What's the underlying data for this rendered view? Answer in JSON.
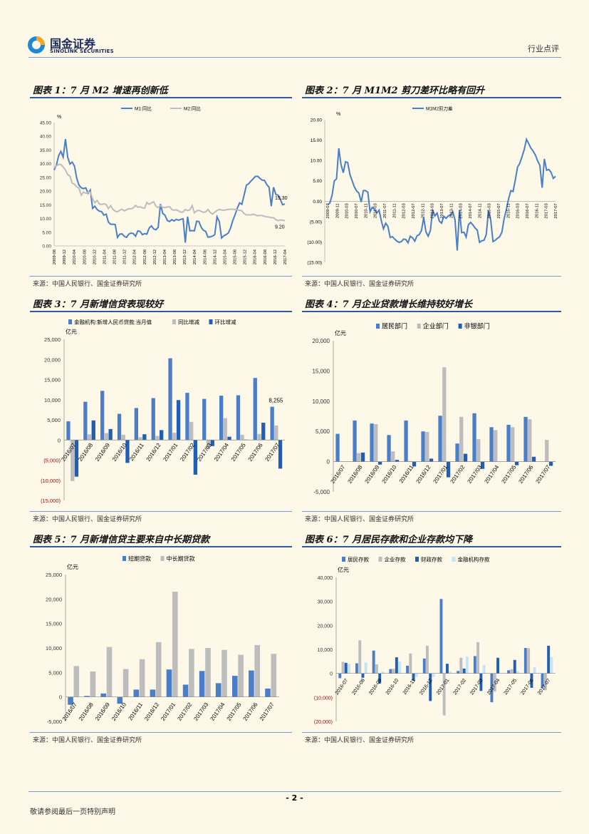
{
  "header": {
    "brand_cn": "国金证券",
    "brand_en": "SINOLINK SECURITIES",
    "category": "行业点评"
  },
  "figures": {
    "f1": {
      "title": "图表 1：7 月 M2 增速再创新低",
      "source": "来源：中国人民银行、国金证券研究所"
    },
    "f2": {
      "title": "图表 2：7 月 M1M2 剪刀差环比略有回升",
      "source": "来源：中国人民银行、国金证券研究所"
    },
    "f3": {
      "title": "图表 3：7 月新增信贷表现较好",
      "source": "来源：中国人民银行、国金证券研究所"
    },
    "f4": {
      "title": "图表 4：7 月企业贷款增长维持较好增长",
      "source": "来源：中国人民银行、国金证券研究所"
    },
    "f5": {
      "title": "图表 5：7 月新增信贷主要来自中长期贷款",
      "source": "来源：中国人民银行、国金证券研究所"
    },
    "f6": {
      "title": "图表 6：7 月居民存款和企业存款均下降",
      "source": "来源：中国人民银行、国金证券研究所"
    }
  },
  "footer": {
    "page": "- 2 -",
    "note": "敬请参阅最后一页特别声明"
  },
  "colors": {
    "blue": "#4a7ec8",
    "darkblue": "#1f5fb5",
    "gray": "#bdbdbd",
    "lightblue": "#c6e4f5",
    "red": "#c00000"
  },
  "chart_data": [
    {
      "id": "f1",
      "type": "line",
      "ylabel": "%",
      "ylim": [
        0,
        45
      ],
      "yticks": [
        "45.00",
        "40.00",
        "35.00",
        "30.00",
        "25.00",
        "20.00",
        "15.00",
        "10.00",
        "5.00",
        "0.00"
      ],
      "xticks": [
        "2009-08",
        "2009-12",
        "2010-04",
        "2010-08",
        "2010-12",
        "2011-04",
        "2011-08",
        "2011-12",
        "2012-04",
        "2012-08",
        "2012-12",
        "2013-04",
        "2013-08",
        "2013-12",
        "2014-04",
        "2014-08",
        "2014-12",
        "2015-04",
        "2015-08",
        "2015-12",
        "2016-04",
        "2016-08",
        "2016-12",
        "2017-04"
      ],
      "annotations": [
        "15.30",
        "9.20"
      ],
      "series": [
        {
          "name": "M1:同比",
          "values": [
            27.7,
            29.5,
            33,
            34.5,
            32.4,
            39,
            32.3,
            29.9,
            30.6,
            29.1,
            24.6,
            22.2,
            21.2,
            20.9,
            21.2,
            19.2,
            20.4,
            13.7,
            14.5,
            13.3,
            12.7,
            12.5,
            11.2,
            11.6,
            8.7,
            7.9,
            7.9,
            7.8,
            3.1,
            4.3,
            4.4,
            3.5,
            3.1,
            4.3,
            4.7,
            4.5,
            3.5,
            5.5,
            5.3,
            4.1,
            4.5,
            4.3,
            6.5,
            7.3,
            6.2,
            5.9,
            6.8,
            15.3,
            11.9,
            11.2,
            9.3,
            8.9,
            9.6,
            9.1,
            9.7,
            9.4,
            9.7,
            9.9,
            1.2,
            10.7,
            5.5,
            5.6,
            5.5,
            9.0,
            8.9,
            6.8,
            5.7,
            5.3,
            3.2,
            3.3,
            3.6,
            4.1,
            10.6,
            8.9,
            2.9,
            3.7,
            4.1,
            4.7,
            6.6,
            9.3,
            11.4,
            13.8,
            15.7,
            15.2,
            18.6,
            22.2,
            22.7,
            23.7,
            24.5,
            25.4,
            25.4,
            24.6,
            24.0,
            23.9,
            22.4,
            21.4,
            14.5,
            21.4,
            18.8,
            18.5,
            17.0,
            15.0,
            15.3
          ]
        },
        {
          "name": "M2:同比",
          "values": [
            28.5,
            29.3,
            29.7,
            29.7,
            28.8,
            27.7,
            26.0,
            25.5,
            22.9,
            22.5,
            21.5,
            21.1,
            18.5,
            19.7,
            19.2,
            19.5,
            19.7,
            17.2,
            15.7,
            16.6,
            15.3,
            15.1,
            15.4,
            15.1,
            13.6,
            14.7,
            13.3,
            12.7,
            12.4,
            13.0,
            13.4,
            12.8,
            13.2,
            13.6,
            13.5,
            13.9,
            14.8,
            14.1,
            14.3,
            13.9,
            13.8,
            15.9,
            15.2,
            15.7,
            16.1,
            14.5,
            14.0,
            14.7,
            14.1,
            14.0,
            14.2,
            14.3,
            13.3,
            13.0,
            13.2,
            12.8,
            12.3,
            12.4,
            13.3,
            12.9,
            13.2,
            14.7,
            12.1,
            12.8,
            13.0,
            12.6,
            12.3,
            12.4,
            13.3,
            12.2,
            11.6,
            12.3,
            12.9,
            13.3,
            13.1,
            13.0,
            13.2,
            13.3,
            13.4,
            13.4,
            13.3,
            13.1,
            13.0,
            12.8,
            11.8,
            11.3,
            11.4,
            11.3,
            11.6,
            11.3,
            11.0,
            11.1,
            11.1,
            10.8,
            10.6,
            10.5,
            10.3,
            10.3,
            9.6,
            9.2,
            9.5,
            9.4,
            9.2
          ]
        }
      ]
    },
    {
      "id": "f2",
      "type": "line",
      "ylabel": "%",
      "ylim": [
        -15,
        20
      ],
      "yticks": [
        "20.00",
        "15.00",
        "10.00",
        "5.00",
        "0.00",
        "(5.00)",
        "(10.00)",
        "(15.00)"
      ],
      "xticks": [
        "2009-07",
        "2009-11",
        "2010-03",
        "2010-07",
        "2010-11",
        "2011-03",
        "2011-07",
        "2011-11",
        "2012-03",
        "2012-07",
        "2012-11",
        "2013-03",
        "2013-07",
        "2013-11",
        "2014-03",
        "2014-07",
        "2014-11",
        "2015-03",
        "2015-07",
        "2015-11",
        "2016-03",
        "2016-07",
        "2016-11",
        "2017-03",
        "2017-07"
      ],
      "series": [
        {
          "name": "M1M2剪刀差",
          "values": [
            -0.8,
            -0.5,
            1.5,
            5,
            5.5,
            13,
            9,
            7,
            9.7,
            9.5,
            6.5,
            5,
            3.5,
            2.5,
            2,
            -0.2,
            2.6,
            2.6,
            2.2,
            -2.6,
            -1.5,
            -2,
            -2.9,
            -2.2,
            -4.7,
            -6.8,
            -5.4,
            -6.2,
            -8.9,
            -8.7,
            -9.3,
            -9.8,
            -10.1,
            -9.9,
            -9.3,
            -9.4,
            -10.2,
            -8.6,
            -9.0,
            -9.8,
            -8.5,
            -8.2,
            -7.2,
            -4.0,
            -7.5,
            -8.6,
            -7.2,
            -2.1,
            -3.6,
            -2.9,
            -4.9,
            -5.4,
            -3.7,
            -4.2,
            -3.6,
            -3.4,
            -2.6,
            -4.5,
            -12.1,
            -2.2,
            -7.7,
            -7.6,
            -8.8,
            -5.8,
            -5.2,
            -5.8,
            -6.6,
            -7.1,
            -10.1,
            -9.7,
            -9.6,
            -8.2,
            -2.3,
            -4.6,
            -9.9,
            -9.6,
            -9.1,
            -8.7,
            -7.6,
            -4.3,
            -2.0,
            0.6,
            2.6,
            2.4,
            5.2,
            8.4,
            9.3,
            10.9,
            12.7,
            15.2,
            14.1,
            13.0,
            12.3,
            11.3,
            9.9,
            8.8,
            3.3,
            10.4,
            7.6,
            7.8,
            7.1,
            5.6,
            6.1
          ]
        }
      ]
    },
    {
      "id": "f3",
      "type": "bar",
      "ylabel": "亿元",
      "ylim": [
        -15000,
        25000
      ],
      "yticks": [
        "25,000",
        "20,000",
        "15,000",
        "10,000",
        "5,000",
        "0",
        "(5,000)",
        "(10,000)",
        "(15,000)"
      ],
      "categories": [
        "2016/07",
        "2016/08",
        "2016/09",
        "2016/10",
        "2016/11",
        "2016/12",
        "2017/01",
        "2017/02",
        "2017/03",
        "2017/04",
        "2017/05",
        "2017/06",
        "2017/07"
      ],
      "annotation": "8,255",
      "series": [
        {
          "name": "金融机构:新增人民币贷款:当月值",
          "values": [
            4636,
            9487,
            12200,
            6513,
            7946,
            10406,
            20300,
            11700,
            10200,
            11000,
            11100,
            15400,
            8255
          ]
        },
        {
          "name": "同比增减",
          "values": [
            -10200,
            1400,
            1700,
            1300,
            700,
            1000,
            1800,
            4500,
            -2100,
            5400,
            1300,
            1500,
            3600
          ]
        },
        {
          "name": "环比增减",
          "values": [
            -9100,
            4851,
            2713,
            -5687,
            1433,
            2460,
            9894,
            -8600,
            -1500,
            800,
            100,
            4300,
            -7100
          ]
        }
      ]
    },
    {
      "id": "f4",
      "type": "bar",
      "ylabel": "亿元",
      "ylim": [
        -5000,
        20000
      ],
      "yticks": [
        "20,000",
        "15,000",
        "10,000",
        "5,000",
        "0",
        "-5,000"
      ],
      "categories": [
        "2016/07",
        "2016/08",
        "2016/09",
        "2016/10",
        "2016/11",
        "2016/12",
        "2017/01",
        "2017/02",
        "2017/03",
        "2017/04",
        "2017/05",
        "2017/06",
        "2017/07"
      ],
      "series": [
        {
          "name": "居民部门",
          "values": [
            4600,
            6800,
            6300,
            4400,
            6800,
            5000,
            7600,
            3000,
            8000,
            5700,
            6100,
            7400,
            0
          ]
        },
        {
          "name": "企业部门",
          "values": [
            0,
            1400,
            6200,
            1700,
            100,
            4900,
            15600,
            7400,
            3700,
            5200,
            5700,
            7000,
            3600
          ]
        },
        {
          "name": "非银部门",
          "values": [
            0,
            1500,
            -500,
            300,
            -800,
            500,
            -2600,
            1300,
            -1200,
            0,
            -600,
            800,
            -700
          ]
        }
      ]
    },
    {
      "id": "f5",
      "type": "bar",
      "ylabel": "亿元",
      "ylim": [
        -5000,
        25000
      ],
      "yticks": [
        "25,000",
        "20,000",
        "15,000",
        "10,000",
        "5,000",
        "0",
        "-5,000"
      ],
      "categories": [
        "2016/07",
        "2016/08",
        "2016/09",
        "2016/10",
        "2016/11",
        "2016/12",
        "2017/01",
        "2017/02",
        "2017/03",
        "2017/04",
        "2017/05",
        "2017/06",
        "2017/07"
      ],
      "series": [
        {
          "name": "短期贷款",
          "values": [
            -1600,
            200,
            700,
            -1400,
            1500,
            1500,
            5600,
            2500,
            5300,
            2800,
            4300,
            5400,
            1700
          ]
        },
        {
          "name": "中长期贷款",
          "values": [
            6300,
            5200,
            10200,
            5700,
            7700,
            11200,
            21500,
            9800,
            10000,
            9600,
            8600,
            10600,
            8800
          ]
        }
      ]
    },
    {
      "id": "f6",
      "type": "bar",
      "ylabel": "亿元",
      "ylim": [
        -20000,
        40000
      ],
      "yticks": [
        "40,000",
        "30,000",
        "20,000",
        "10,000",
        "0",
        "(10,000)",
        "(20,000)"
      ],
      "categories": [
        "2016-07",
        "2016-08",
        "2016-09",
        "2016-10",
        "2016-11",
        "2016-12",
        "2017-01",
        "2017-02",
        "2017-03",
        "2017-04",
        "2017-05",
        "2017-06",
        "2017-07"
      ],
      "series": [
        {
          "name": "居民存款",
          "values": [
            -2000,
            4200,
            9500,
            1800,
            3200,
            6200,
            31000,
            1000,
            7200,
            -12000,
            1300,
            10600,
            -6000
          ]
        },
        {
          "name": "企业存款",
          "values": [
            4800,
            13800,
            3800,
            1900,
            8300,
            11500,
            -17500,
            6500,
            13000,
            -7500,
            1700,
            10500,
            -7000
          ]
        },
        {
          "name": "财政存款",
          "values": [
            4400,
            -1800,
            -4200,
            6700,
            -3000,
            -11500,
            4000,
            2000,
            -7300,
            6500,
            5600,
            -6000,
            11500
          ]
        },
        {
          "name": "金融机构存款",
          "values": [
            4000,
            4500,
            800,
            5000,
            -1500,
            -1500,
            800,
            7000,
            3500,
            0,
            1000,
            2500,
            6800
          ]
        }
      ]
    }
  ]
}
